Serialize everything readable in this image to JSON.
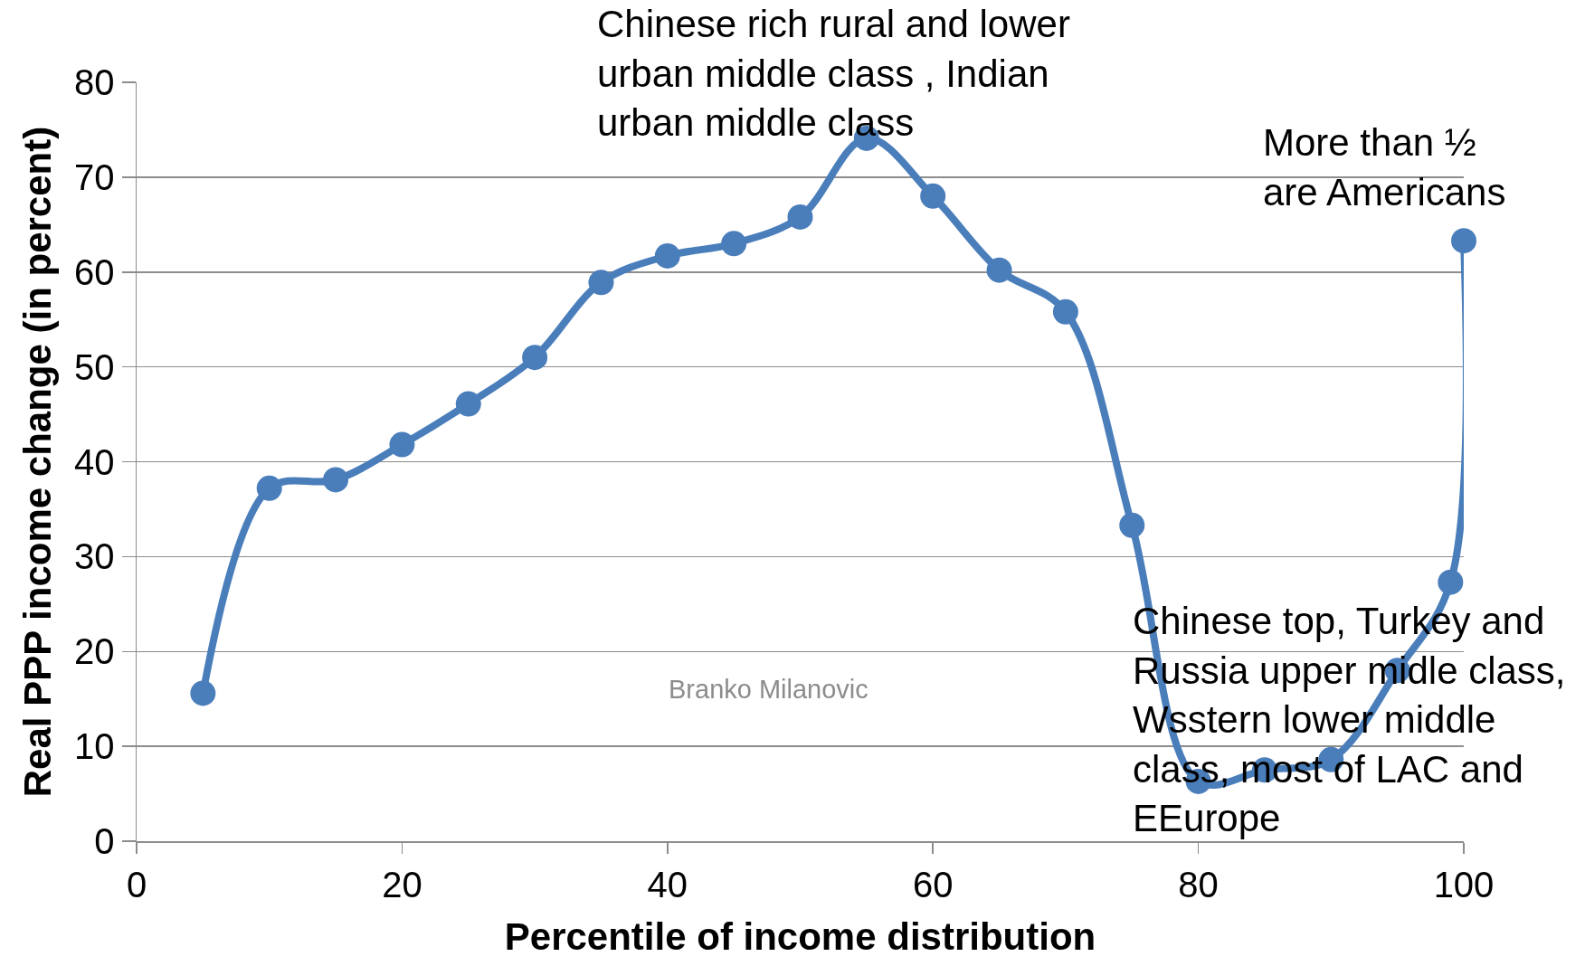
{
  "chart_data": {
    "type": "line",
    "xlabel": "Percentile of income distribution",
    "ylabel": "Real PPP income change (in percent)",
    "x": [
      5,
      10,
      15,
      20,
      25,
      30,
      35,
      40,
      45,
      50,
      55,
      60,
      65,
      70,
      75,
      80,
      85,
      90,
      95,
      99,
      100
    ],
    "series": [
      {
        "color": "#4a7ebb",
        "values": [
          15.6,
          37.2,
          38.1,
          41.8,
          46.1,
          51.0,
          58.9,
          61.7,
          63.0,
          65.8,
          74.1,
          68.0,
          60.2,
          55.8,
          33.3,
          6.3,
          7.5,
          8.6,
          18.0,
          27.3,
          63.3
        ]
      }
    ],
    "xlim": [
      0,
      100
    ],
    "xticks": [
      0,
      20,
      40,
      60,
      80,
      100
    ],
    "ylim": [
      0,
      80
    ],
    "yticks": [
      0,
      10,
      20,
      30,
      40,
      50,
      60,
      70,
      80
    ],
    "grid": "y",
    "marker": "circle",
    "line_style": "solid",
    "annotations": [
      {
        "text": "Chinese rich rural and lower\nurban middle class , Indian\nurban middle class",
        "x": 55,
        "y": 74.1
      },
      {
        "text": "More than ½\nare Americans",
        "x": 100,
        "y": 63.3
      },
      {
        "text": "Chinese top, Turkey and\nRussia upper midle class,\nWsstern lower middle\nclass, most of LAC and\nEEurope",
        "x": 80,
        "y": 6.3
      },
      "Branko Milanovic"
    ]
  }
}
